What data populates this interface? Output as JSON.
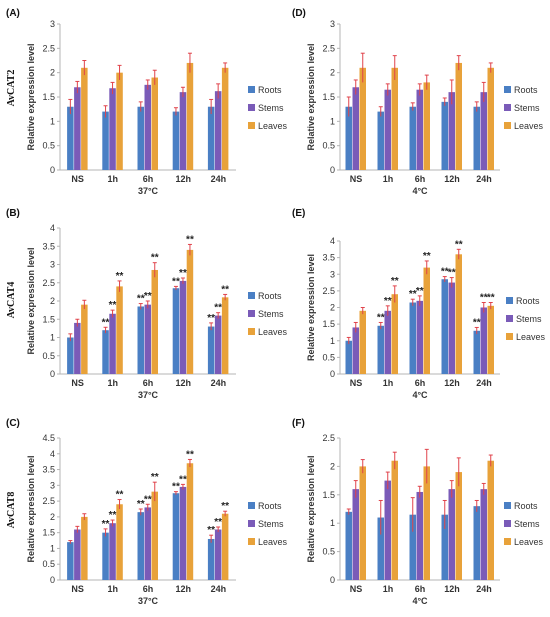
{
  "colors": {
    "Roots": "#4a7fc4",
    "Stems": "#7a5bb8",
    "Leaves": "#e8a23a",
    "error": "#e0434b",
    "axis": "#b5b5b5"
  },
  "chart_data": [
    {
      "type": "bar",
      "panel_label": "(A)",
      "gene_label": "AvCAT2",
      "xlabel": "37°C",
      "ylabel": "Relative expression level",
      "categories": [
        "NS",
        "1h",
        "6h",
        "12h",
        "24h"
      ],
      "ylim": [
        0,
        3
      ],
      "yticks": [
        "0",
        "0.5",
        "1",
        "1.5",
        "2",
        "2.5",
        "3"
      ],
      "legend": "right",
      "series": [
        {
          "name": "Roots",
          "values": [
            1.3,
            1.2,
            1.3,
            1.2,
            1.3
          ],
          "errors": [
            0.15,
            0.12,
            0.1,
            0.08,
            0.15
          ],
          "sig": [
            "",
            "",
            "",
            "",
            ""
          ]
        },
        {
          "name": "Stems",
          "values": [
            1.7,
            1.68,
            1.75,
            1.6,
            1.62
          ],
          "errors": [
            0.12,
            0.12,
            0.1,
            0.1,
            0.15
          ],
          "sig": [
            "",
            "",
            "",
            "",
            ""
          ]
        },
        {
          "name": "Leaves",
          "values": [
            2.1,
            2.0,
            1.9,
            2.2,
            2.1
          ],
          "errors": [
            0.15,
            0.15,
            0.15,
            0.2,
            0.1
          ],
          "sig": [
            "",
            "",
            "",
            "",
            ""
          ]
        }
      ]
    },
    {
      "type": "bar",
      "panel_label": "(D)",
      "gene_label": "",
      "xlabel": "4°C",
      "ylabel": "Relative expression level",
      "categories": [
        "NS",
        "1h",
        "6h",
        "12h",
        "24h"
      ],
      "ylim": [
        0,
        3
      ],
      "yticks": [
        "0",
        "0.5",
        "1",
        "1.5",
        "2",
        "2.5",
        "3"
      ],
      "legend": "right",
      "series": [
        {
          "name": "Roots",
          "values": [
            1.3,
            1.2,
            1.3,
            1.4,
            1.3
          ],
          "errors": [
            0.2,
            0.1,
            0.08,
            0.08,
            0.1
          ],
          "sig": [
            "",
            "",
            "",
            "",
            ""
          ]
        },
        {
          "name": "Stems",
          "values": [
            1.7,
            1.65,
            1.65,
            1.6,
            1.6
          ],
          "errors": [
            0.15,
            0.12,
            0.12,
            0.25,
            0.2
          ],
          "sig": [
            "",
            "",
            "",
            "",
            ""
          ]
        },
        {
          "name": "Leaves",
          "values": [
            2.1,
            2.1,
            1.8,
            2.2,
            2.1
          ],
          "errors": [
            0.3,
            0.25,
            0.15,
            0.15,
            0.1
          ],
          "sig": [
            "",
            "",
            "",
            "",
            ""
          ]
        }
      ]
    },
    {
      "type": "bar",
      "panel_label": "(B)",
      "gene_label": "AvCAT4",
      "xlabel": "37°C",
      "ylabel": "Relative expression level",
      "categories": [
        "NS",
        "1h",
        "6h",
        "12h",
        "24h"
      ],
      "ylim": [
        0,
        4
      ],
      "yticks": [
        "0",
        "0.5",
        "1",
        "1.5",
        "2",
        "2.5",
        "3",
        "3.5",
        "4"
      ],
      "legend": "right",
      "series": [
        {
          "name": "Roots",
          "values": [
            1.0,
            1.2,
            1.85,
            2.35,
            1.3
          ],
          "errors": [
            0.1,
            0.08,
            0.08,
            0.05,
            0.1
          ],
          "sig": [
            "",
            "**",
            "**",
            "**",
            "**"
          ]
        },
        {
          "name": "Stems",
          "values": [
            1.4,
            1.65,
            1.9,
            2.55,
            1.6
          ],
          "errors": [
            0.1,
            0.1,
            0.1,
            0.08,
            0.08
          ],
          "sig": [
            "",
            "**",
            "**",
            "**",
            "**"
          ]
        },
        {
          "name": "Leaves",
          "values": [
            1.9,
            2.4,
            2.85,
            3.4,
            2.1
          ],
          "errors": [
            0.12,
            0.15,
            0.2,
            0.15,
            0.08
          ],
          "sig": [
            "",
            "**",
            "**",
            "**",
            "**"
          ]
        }
      ]
    },
    {
      "type": "bar",
      "panel_label": "(E)",
      "gene_label": "",
      "xlabel": "4°C",
      "ylabel": "Relative expression level",
      "categories": [
        "NS",
        "1h",
        "6h",
        "12h",
        "24h"
      ],
      "ylim": [
        0,
        4
      ],
      "yticks": [
        "0",
        "0.5",
        "1",
        "1.5",
        "2",
        "2.5",
        "3",
        "3.5",
        "4"
      ],
      "legend": "right",
      "series": [
        {
          "name": "Roots",
          "values": [
            1.0,
            1.45,
            2.15,
            2.85,
            1.3
          ],
          "errors": [
            0.1,
            0.1,
            0.1,
            0.08,
            0.1
          ],
          "sig": [
            "",
            "**",
            "**",
            "**",
            "**"
          ]
        },
        {
          "name": "Stems",
          "values": [
            1.4,
            1.9,
            2.2,
            2.75,
            2.0
          ],
          "errors": [
            0.15,
            0.15,
            0.15,
            0.15,
            0.15
          ],
          "sig": [
            "",
            "**",
            "**",
            "**",
            "**"
          ]
        },
        {
          "name": "Leaves",
          "values": [
            1.9,
            2.4,
            3.2,
            3.6,
            2.05
          ],
          "errors": [
            0.1,
            0.25,
            0.2,
            0.15,
            0.1
          ],
          "sig": [
            "",
            "**",
            "**",
            "**",
            "**"
          ]
        }
      ]
    },
    {
      "type": "bar",
      "panel_label": "(C)",
      "gene_label": "AvCAT8",
      "xlabel": "37°C",
      "ylabel": "Relative expression level",
      "categories": [
        "NS",
        "1h",
        "6h",
        "12h",
        "24h"
      ],
      "ylim": [
        0,
        4.5
      ],
      "yticks": [
        "0",
        "0.5",
        "1",
        "1.5",
        "2",
        "2.5",
        "3",
        "3.5",
        "4",
        "4.5"
      ],
      "legend": "right",
      "series": [
        {
          "name": "Roots",
          "values": [
            1.2,
            1.5,
            2.15,
            2.75,
            1.3
          ],
          "errors": [
            0.05,
            0.12,
            0.1,
            0.05,
            0.12
          ],
          "sig": [
            "",
            "**",
            "**",
            "**",
            "**"
          ]
        },
        {
          "name": "Stems",
          "values": [
            1.6,
            1.8,
            2.3,
            2.95,
            1.6
          ],
          "errors": [
            0.1,
            0.1,
            0.1,
            0.08,
            0.08
          ],
          "sig": [
            "",
            "**",
            "**",
            "**",
            "**"
          ]
        },
        {
          "name": "Leaves",
          "values": [
            2.0,
            2.4,
            2.8,
            3.7,
            2.1
          ],
          "errors": [
            0.1,
            0.15,
            0.3,
            0.12,
            0.08
          ],
          "sig": [
            "",
            "**",
            "**",
            "**",
            "**"
          ]
        }
      ]
    },
    {
      "type": "bar",
      "panel_label": "(F)",
      "gene_label": "",
      "xlabel": "4°C",
      "ylabel": "Relative expression level",
      "categories": [
        "NS",
        "1h",
        "6h",
        "12h",
        "24h"
      ],
      "ylim": [
        0,
        2.5
      ],
      "yticks": [
        "0",
        "0.5",
        "1",
        "1.5",
        "2",
        "2.5"
      ],
      "legend": "right",
      "series": [
        {
          "name": "Roots",
          "values": [
            1.2,
            1.1,
            1.15,
            1.15,
            1.3
          ],
          "errors": [
            0.05,
            0.3,
            0.3,
            0.25,
            0.1
          ],
          "sig": [
            "",
            "",
            "",
            "",
            ""
          ]
        },
        {
          "name": "Stems",
          "values": [
            1.6,
            1.75,
            1.55,
            1.6,
            1.6
          ],
          "errors": [
            0.15,
            0.15,
            0.1,
            0.15,
            0.1
          ],
          "sig": [
            "",
            "",
            "",
            "",
            ""
          ]
        },
        {
          "name": "Leaves",
          "values": [
            2.0,
            2.1,
            2.0,
            1.9,
            2.1
          ],
          "errors": [
            0.12,
            0.15,
            0.3,
            0.25,
            0.1
          ],
          "sig": [
            "",
            "",
            "",
            "",
            ""
          ]
        }
      ]
    }
  ]
}
